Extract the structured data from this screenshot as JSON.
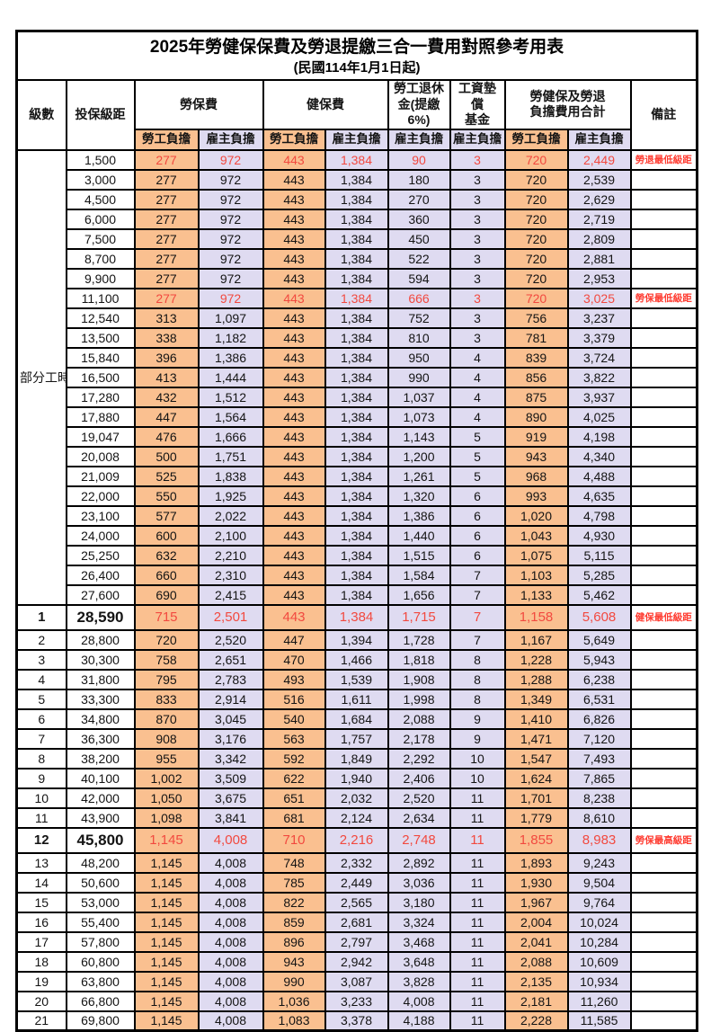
{
  "title": "2025年勞健保保費及勞退提繳三合一費用對照參考用表",
  "subtitle": "(民國114年1月1日起)",
  "colors": {
    "employee_col_bg": "#FAC090",
    "employer_col_bg": "#DFDBF1",
    "highlight_value_text": "#F2493F",
    "remark_text": "#FF3B30",
    "border": "#000000"
  },
  "header": {
    "level": "級數",
    "bracket": "投保級距",
    "labor_insurance": "勞保費",
    "health_insurance": "健保費",
    "pension": "勞工退休\n金(提繳6%)",
    "wage_fund": "工資墊償\n基金",
    "total": "勞健保及勞退\n負擔費用合計",
    "remark": "備註",
    "employee": "勞工負擔",
    "employer": "雇主負擔"
  },
  "part_time_label": "部分工時",
  "rows": [
    {
      "level": "",
      "bracket": "1,500",
      "values": [
        "277",
        "972",
        "443",
        "1,384",
        "90",
        "3",
        "720",
        "2,449"
      ],
      "remark": "勞退最低級距",
      "highlight": true,
      "big": false
    },
    {
      "level": "",
      "bracket": "3,000",
      "values": [
        "277",
        "972",
        "443",
        "1,384",
        "180",
        "3",
        "720",
        "2,539"
      ],
      "remark": "",
      "highlight": false,
      "big": false
    },
    {
      "level": "",
      "bracket": "4,500",
      "values": [
        "277",
        "972",
        "443",
        "1,384",
        "270",
        "3",
        "720",
        "2,629"
      ],
      "remark": "",
      "highlight": false,
      "big": false
    },
    {
      "level": "",
      "bracket": "6,000",
      "values": [
        "277",
        "972",
        "443",
        "1,384",
        "360",
        "3",
        "720",
        "2,719"
      ],
      "remark": "",
      "highlight": false,
      "big": false
    },
    {
      "level": "",
      "bracket": "7,500",
      "values": [
        "277",
        "972",
        "443",
        "1,384",
        "450",
        "3",
        "720",
        "2,809"
      ],
      "remark": "",
      "highlight": false,
      "big": false
    },
    {
      "level": "",
      "bracket": "8,700",
      "values": [
        "277",
        "972",
        "443",
        "1,384",
        "522",
        "3",
        "720",
        "2,881"
      ],
      "remark": "",
      "highlight": false,
      "big": false
    },
    {
      "level": "",
      "bracket": "9,900",
      "values": [
        "277",
        "972",
        "443",
        "1,384",
        "594",
        "3",
        "720",
        "2,953"
      ],
      "remark": "",
      "highlight": false,
      "big": false
    },
    {
      "level": "",
      "bracket": "11,100",
      "values": [
        "277",
        "972",
        "443",
        "1,384",
        "666",
        "3",
        "720",
        "3,025"
      ],
      "remark": "勞保最低級距",
      "highlight": true,
      "big": false
    },
    {
      "level": "",
      "bracket": "12,540",
      "values": [
        "313",
        "1,097",
        "443",
        "1,384",
        "752",
        "3",
        "756",
        "3,237"
      ],
      "remark": "",
      "highlight": false,
      "big": false
    },
    {
      "level": "",
      "bracket": "13,500",
      "values": [
        "338",
        "1,182",
        "443",
        "1,384",
        "810",
        "3",
        "781",
        "3,379"
      ],
      "remark": "",
      "highlight": false,
      "big": false
    },
    {
      "level": "",
      "bracket": "15,840",
      "values": [
        "396",
        "1,386",
        "443",
        "1,384",
        "950",
        "4",
        "839",
        "3,724"
      ],
      "remark": "",
      "highlight": false,
      "big": false
    },
    {
      "level": "",
      "bracket": "16,500",
      "values": [
        "413",
        "1,444",
        "443",
        "1,384",
        "990",
        "4",
        "856",
        "3,822"
      ],
      "remark": "",
      "highlight": false,
      "big": false
    },
    {
      "level": "",
      "bracket": "17,280",
      "values": [
        "432",
        "1,512",
        "443",
        "1,384",
        "1,037",
        "4",
        "875",
        "3,937"
      ],
      "remark": "",
      "highlight": false,
      "big": false
    },
    {
      "level": "",
      "bracket": "17,880",
      "values": [
        "447",
        "1,564",
        "443",
        "1,384",
        "1,073",
        "4",
        "890",
        "4,025"
      ],
      "remark": "",
      "highlight": false,
      "big": false
    },
    {
      "level": "",
      "bracket": "19,047",
      "values": [
        "476",
        "1,666",
        "443",
        "1,384",
        "1,143",
        "5",
        "919",
        "4,198"
      ],
      "remark": "",
      "highlight": false,
      "big": false
    },
    {
      "level": "",
      "bracket": "20,008",
      "values": [
        "500",
        "1,751",
        "443",
        "1,384",
        "1,200",
        "5",
        "943",
        "4,340"
      ],
      "remark": "",
      "highlight": false,
      "big": false
    },
    {
      "level": "",
      "bracket": "21,009",
      "values": [
        "525",
        "1,838",
        "443",
        "1,384",
        "1,261",
        "5",
        "968",
        "4,488"
      ],
      "remark": "",
      "highlight": false,
      "big": false
    },
    {
      "level": "",
      "bracket": "22,000",
      "values": [
        "550",
        "1,925",
        "443",
        "1,384",
        "1,320",
        "6",
        "993",
        "4,635"
      ],
      "remark": "",
      "highlight": false,
      "big": false
    },
    {
      "level": "",
      "bracket": "23,100",
      "values": [
        "577",
        "2,022",
        "443",
        "1,384",
        "1,386",
        "6",
        "1,020",
        "4,798"
      ],
      "remark": "",
      "highlight": false,
      "big": false
    },
    {
      "level": "",
      "bracket": "24,000",
      "values": [
        "600",
        "2,100",
        "443",
        "1,384",
        "1,440",
        "6",
        "1,043",
        "4,930"
      ],
      "remark": "",
      "highlight": false,
      "big": false
    },
    {
      "level": "",
      "bracket": "25,250",
      "values": [
        "632",
        "2,210",
        "443",
        "1,384",
        "1,515",
        "6",
        "1,075",
        "5,115"
      ],
      "remark": "",
      "highlight": false,
      "big": false
    },
    {
      "level": "",
      "bracket": "26,400",
      "values": [
        "660",
        "2,310",
        "443",
        "1,384",
        "1,584",
        "7",
        "1,103",
        "5,285"
      ],
      "remark": "",
      "highlight": false,
      "big": false
    },
    {
      "level": "",
      "bracket": "27,600",
      "values": [
        "690",
        "2,415",
        "443",
        "1,384",
        "1,656",
        "7",
        "1,133",
        "5,462"
      ],
      "remark": "",
      "highlight": false,
      "big": false
    },
    {
      "level": "1",
      "bracket": "28,590",
      "values": [
        "715",
        "2,501",
        "443",
        "1,384",
        "1,715",
        "7",
        "1,158",
        "5,608"
      ],
      "remark": "健保最低級距",
      "highlight": true,
      "big": true
    },
    {
      "level": "2",
      "bracket": "28,800",
      "values": [
        "720",
        "2,520",
        "447",
        "1,394",
        "1,728",
        "7",
        "1,167",
        "5,649"
      ],
      "remark": "",
      "highlight": false,
      "big": false
    },
    {
      "level": "3",
      "bracket": "30,300",
      "values": [
        "758",
        "2,651",
        "470",
        "1,466",
        "1,818",
        "8",
        "1,228",
        "5,943"
      ],
      "remark": "",
      "highlight": false,
      "big": false
    },
    {
      "level": "4",
      "bracket": "31,800",
      "values": [
        "795",
        "2,783",
        "493",
        "1,539",
        "1,908",
        "8",
        "1,288",
        "6,238"
      ],
      "remark": "",
      "highlight": false,
      "big": false
    },
    {
      "level": "5",
      "bracket": "33,300",
      "values": [
        "833",
        "2,914",
        "516",
        "1,611",
        "1,998",
        "8",
        "1,349",
        "6,531"
      ],
      "remark": "",
      "highlight": false,
      "big": false
    },
    {
      "level": "6",
      "bracket": "34,800",
      "values": [
        "870",
        "3,045",
        "540",
        "1,684",
        "2,088",
        "9",
        "1,410",
        "6,826"
      ],
      "remark": "",
      "highlight": false,
      "big": false
    },
    {
      "level": "7",
      "bracket": "36,300",
      "values": [
        "908",
        "3,176",
        "563",
        "1,757",
        "2,178",
        "9",
        "1,471",
        "7,120"
      ],
      "remark": "",
      "highlight": false,
      "big": false
    },
    {
      "level": "8",
      "bracket": "38,200",
      "values": [
        "955",
        "3,342",
        "592",
        "1,849",
        "2,292",
        "10",
        "1,547",
        "7,493"
      ],
      "remark": "",
      "highlight": false,
      "big": false
    },
    {
      "level": "9",
      "bracket": "40,100",
      "values": [
        "1,002",
        "3,509",
        "622",
        "1,940",
        "2,406",
        "10",
        "1,624",
        "7,865"
      ],
      "remark": "",
      "highlight": false,
      "big": false
    },
    {
      "level": "10",
      "bracket": "42,000",
      "values": [
        "1,050",
        "3,675",
        "651",
        "2,032",
        "2,520",
        "11",
        "1,701",
        "8,238"
      ],
      "remark": "",
      "highlight": false,
      "big": false
    },
    {
      "level": "11",
      "bracket": "43,900",
      "values": [
        "1,098",
        "3,841",
        "681",
        "2,124",
        "2,634",
        "11",
        "1,779",
        "8,610"
      ],
      "remark": "",
      "highlight": false,
      "big": false
    },
    {
      "level": "12",
      "bracket": "45,800",
      "values": [
        "1,145",
        "4,008",
        "710",
        "2,216",
        "2,748",
        "11",
        "1,855",
        "8,983"
      ],
      "remark": "勞保最高級距",
      "highlight": true,
      "big": true
    },
    {
      "level": "13",
      "bracket": "48,200",
      "values": [
        "1,145",
        "4,008",
        "748",
        "2,332",
        "2,892",
        "11",
        "1,893",
        "9,243"
      ],
      "remark": "",
      "highlight": false,
      "big": false
    },
    {
      "level": "14",
      "bracket": "50,600",
      "values": [
        "1,145",
        "4,008",
        "785",
        "2,449",
        "3,036",
        "11",
        "1,930",
        "9,504"
      ],
      "remark": "",
      "highlight": false,
      "big": false
    },
    {
      "level": "15",
      "bracket": "53,000",
      "values": [
        "1,145",
        "4,008",
        "822",
        "2,565",
        "3,180",
        "11",
        "1,967",
        "9,764"
      ],
      "remark": "",
      "highlight": false,
      "big": false
    },
    {
      "level": "16",
      "bracket": "55,400",
      "values": [
        "1,145",
        "4,008",
        "859",
        "2,681",
        "3,324",
        "11",
        "2,004",
        "10,024"
      ],
      "remark": "",
      "highlight": false,
      "big": false
    },
    {
      "level": "17",
      "bracket": "57,800",
      "values": [
        "1,145",
        "4,008",
        "896",
        "2,797",
        "3,468",
        "11",
        "2,041",
        "10,284"
      ],
      "remark": "",
      "highlight": false,
      "big": false
    },
    {
      "level": "18",
      "bracket": "60,800",
      "values": [
        "1,145",
        "4,008",
        "943",
        "2,942",
        "3,648",
        "11",
        "2,088",
        "10,609"
      ],
      "remark": "",
      "highlight": false,
      "big": false
    },
    {
      "level": "19",
      "bracket": "63,800",
      "values": [
        "1,145",
        "4,008",
        "990",
        "3,087",
        "3,828",
        "11",
        "2,135",
        "10,934"
      ],
      "remark": "",
      "highlight": false,
      "big": false
    },
    {
      "level": "20",
      "bracket": "66,800",
      "values": [
        "1,145",
        "4,008",
        "1,036",
        "3,233",
        "4,008",
        "11",
        "2,181",
        "11,260"
      ],
      "remark": "",
      "highlight": false,
      "big": false
    },
    {
      "level": "21",
      "bracket": "69,800",
      "values": [
        "1,145",
        "4,008",
        "1,083",
        "3,378",
        "4,188",
        "11",
        "2,228",
        "11,585"
      ],
      "remark": "",
      "highlight": false,
      "big": false
    }
  ]
}
